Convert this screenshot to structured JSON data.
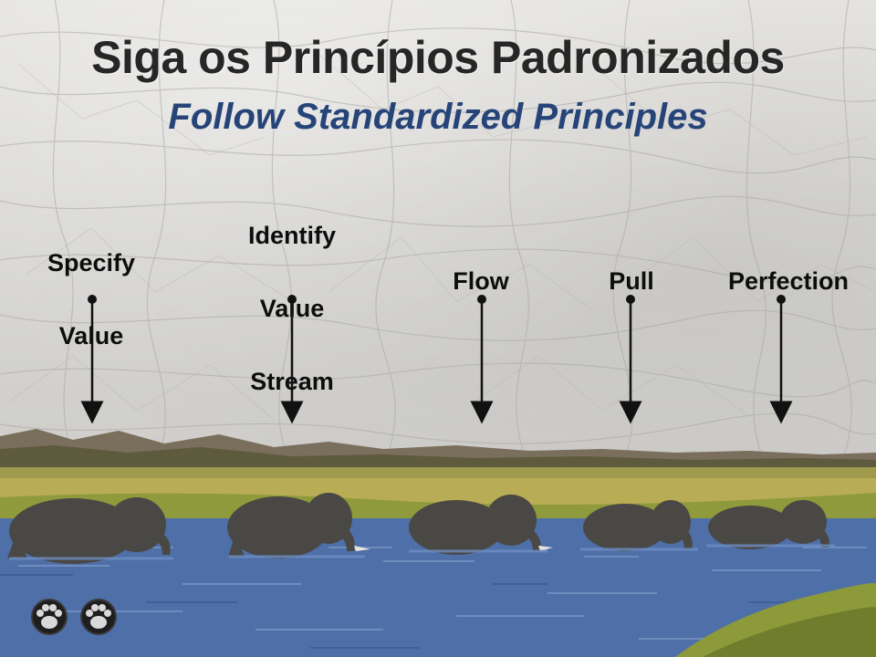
{
  "title": "Siga os Princípios Padronizados",
  "subtitle": "Follow  Standardized Principles",
  "principles": [
    {
      "lines": [
        "Specify",
        "Value"
      ]
    },
    {
      "lines": [
        "Identify",
        "Value",
        "Stream"
      ]
    },
    {
      "lines": [
        "Flow"
      ]
    },
    {
      "lines": [
        "Pull"
      ]
    },
    {
      "lines": [
        "Perfection"
      ]
    }
  ],
  "icons": [
    "paw-icon",
    "paw-icon"
  ],
  "colors": {
    "title": "#262626",
    "subtitle": "#264478",
    "water": "#4f6fa8",
    "grass": "#b5a94a",
    "elephant": "#4a4845"
  }
}
